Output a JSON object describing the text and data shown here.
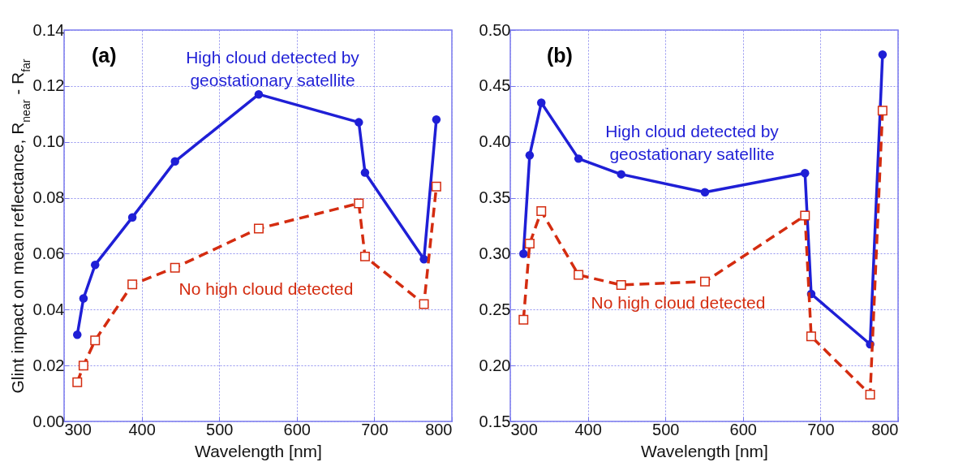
{
  "chart_data": [
    {
      "type": "line",
      "xlabel": "Wavelength [nm]",
      "ylabel": "Glint impact on mean reflectance, R$_{near}$ - R$_{far}$",
      "annotations": [
        "(a)"
      ],
      "x": [
        317,
        325,
        340,
        388,
        443,
        551,
        680,
        688,
        764,
        780
      ],
      "series": [
        {
          "name": "High cloud detected by geostationary satellite",
          "color": "#1f1fd6",
          "marker": "circle",
          "line_style": "solid",
          "values": [
            0.031,
            0.044,
            0.056,
            0.073,
            0.093,
            0.117,
            0.107,
            0.089,
            0.058,
            0.108
          ]
        },
        {
          "name": "No high cloud detected",
          "color": "#d42c10",
          "marker": "square",
          "line_style": "dashed",
          "values": [
            0.014,
            0.02,
            0.029,
            0.049,
            0.055,
            0.069,
            0.078,
            0.059,
            0.042,
            0.084
          ]
        }
      ],
      "xlim": [
        300,
        800
      ],
      "xticks": [
        300,
        400,
        500,
        600,
        700,
        800
      ],
      "ylim": [
        0,
        0.14
      ],
      "yticks": [
        {
          "value": 0,
          "label": "0.00"
        },
        {
          "value": 0.02,
          "label": "0.02"
        },
        {
          "value": 0.04,
          "label": "0.04"
        },
        {
          "value": 0.06,
          "label": "0.06"
        },
        {
          "value": 0.08,
          "label": "0.08"
        },
        {
          "value": 0.1,
          "label": "0.10"
        },
        {
          "value": 0.12,
          "label": "0.12"
        },
        {
          "value": 0.14,
          "label": "0.14"
        }
      ],
      "grid": true,
      "legend": false
    },
    {
      "type": "line",
      "xlabel": "Wavelength [nm]",
      "annotations": [
        "(b)"
      ],
      "x": [
        317,
        325,
        340,
        388,
        443,
        551,
        680,
        688,
        764,
        780
      ],
      "series": [
        {
          "name": "High cloud detected by geostationary satellite",
          "color": "#1f1fd6",
          "marker": "circle",
          "line_style": "solid",
          "values": [
            0.3,
            0.388,
            0.435,
            0.385,
            0.371,
            0.355,
            0.372,
            0.264,
            0.219,
            0.478
          ]
        },
        {
          "name": "No high cloud detected",
          "color": "#d42c10",
          "marker": "square",
          "line_style": "dashed",
          "values": [
            0.241,
            0.309,
            0.338,
            0.281,
            0.272,
            0.275,
            0.334,
            0.226,
            0.174,
            0.428
          ]
        }
      ],
      "xlim": [
        300,
        800
      ],
      "xticks": [
        300,
        400,
        500,
        600,
        700,
        800
      ],
      "ylim": [
        0.15,
        0.5
      ],
      "yticks": [
        {
          "value": 0.15,
          "label": "0.15"
        },
        {
          "value": 0.2,
          "label": "0.20"
        },
        {
          "value": 0.25,
          "label": "0.25"
        },
        {
          "value": 0.3,
          "label": "0.30"
        },
        {
          "value": 0.35,
          "label": "0.35"
        },
        {
          "value": 0.4,
          "label": "0.40"
        },
        {
          "value": 0.45,
          "label": "0.45"
        },
        {
          "value": 0.5,
          "label": "0.50"
        }
      ],
      "grid": true,
      "legend": false
    }
  ]
}
